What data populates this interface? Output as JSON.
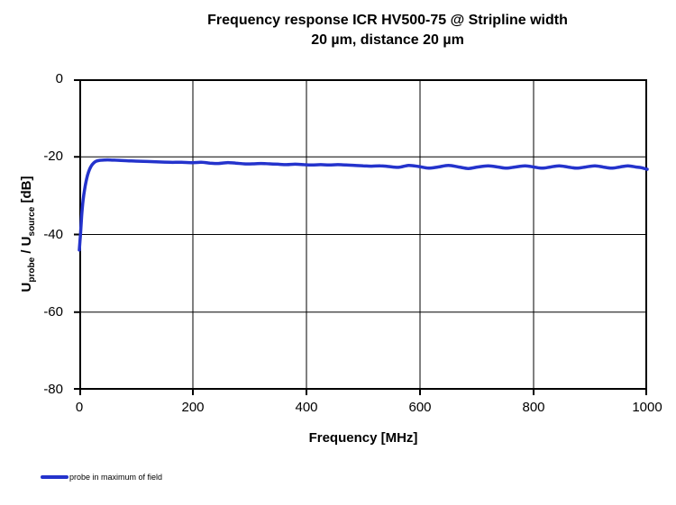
{
  "header": {
    "title_line1": "Frequency response ICR HV500-75 @ Stripline width",
    "title_line2": "20 µm, distance 20 µm"
  },
  "axes": {
    "y_label": {
      "u1": "U",
      "sub1": "probe",
      "mid": " / U",
      "sub2": "source",
      "end": " [dB]"
    },
    "x_label": "Frequency [MHz]"
  },
  "legend": {
    "items": [
      {
        "label": "probe in maximum of field",
        "color": "#2433cc"
      }
    ]
  },
  "chart_data": {
    "type": "line",
    "title": "Frequency response ICR HV500-75 @ Stripline width 20 µm, distance 20 µm",
    "xlabel": "Frequency [MHz]",
    "ylabel": "U_probe / U_source [dB]",
    "xlim": [
      0,
      1000
    ],
    "ylim": [
      -80,
      0
    ],
    "x_ticks": [
      0,
      200,
      400,
      600,
      800,
      1000
    ],
    "y_ticks": [
      0,
      -20,
      -40,
      -60,
      -80
    ],
    "grid": true,
    "legend_position": "bottom-left",
    "axis_color": "#000000",
    "series": [
      {
        "name": "probe in maximum of field",
        "color": "#2433cc",
        "points": [
          [
            0,
            -44.0
          ],
          [
            2,
            -40.0
          ],
          [
            4,
            -35.5
          ],
          [
            6,
            -32.0
          ],
          [
            8,
            -29.7
          ],
          [
            10,
            -27.8
          ],
          [
            13,
            -25.6
          ],
          [
            16,
            -24.0
          ],
          [
            20,
            -22.6
          ],
          [
            25,
            -21.6
          ],
          [
            30,
            -21.1
          ],
          [
            36,
            -20.9
          ],
          [
            45,
            -20.8
          ],
          [
            55,
            -20.8
          ],
          [
            70,
            -20.9
          ],
          [
            85,
            -21.0
          ],
          [
            100,
            -21.1
          ],
          [
            120,
            -21.2
          ],
          [
            140,
            -21.3
          ],
          [
            160,
            -21.4
          ],
          [
            180,
            -21.4
          ],
          [
            200,
            -21.5
          ],
          [
            215,
            -21.4
          ],
          [
            230,
            -21.6
          ],
          [
            245,
            -21.7
          ],
          [
            260,
            -21.5
          ],
          [
            275,
            -21.6
          ],
          [
            290,
            -21.8
          ],
          [
            305,
            -21.8
          ],
          [
            320,
            -21.7
          ],
          [
            335,
            -21.8
          ],
          [
            350,
            -21.9
          ],
          [
            365,
            -22.0
          ],
          [
            380,
            -21.9
          ],
          [
            395,
            -22.0
          ],
          [
            410,
            -22.1
          ],
          [
            425,
            -22.0
          ],
          [
            440,
            -22.1
          ],
          [
            455,
            -22.0
          ],
          [
            470,
            -22.1
          ],
          [
            485,
            -22.2
          ],
          [
            500,
            -22.3
          ],
          [
            515,
            -22.4
          ],
          [
            530,
            -22.3
          ],
          [
            545,
            -22.5
          ],
          [
            562,
            -22.7
          ],
          [
            580,
            -22.2
          ],
          [
            598,
            -22.5
          ],
          [
            615,
            -22.9
          ],
          [
            632,
            -22.6
          ],
          [
            650,
            -22.2
          ],
          [
            668,
            -22.6
          ],
          [
            685,
            -23.0
          ],
          [
            702,
            -22.6
          ],
          [
            720,
            -22.3
          ],
          [
            737,
            -22.6
          ],
          [
            752,
            -22.9
          ],
          [
            768,
            -22.6
          ],
          [
            785,
            -22.3
          ],
          [
            800,
            -22.6
          ],
          [
            815,
            -22.9
          ],
          [
            830,
            -22.6
          ],
          [
            845,
            -22.3
          ],
          [
            860,
            -22.6
          ],
          [
            876,
            -22.9
          ],
          [
            892,
            -22.6
          ],
          [
            908,
            -22.3
          ],
          [
            922,
            -22.6
          ],
          [
            937,
            -22.9
          ],
          [
            952,
            -22.6
          ],
          [
            966,
            -22.3
          ],
          [
            980,
            -22.6
          ],
          [
            990,
            -22.8
          ],
          [
            1000,
            -23.2
          ]
        ]
      }
    ]
  }
}
